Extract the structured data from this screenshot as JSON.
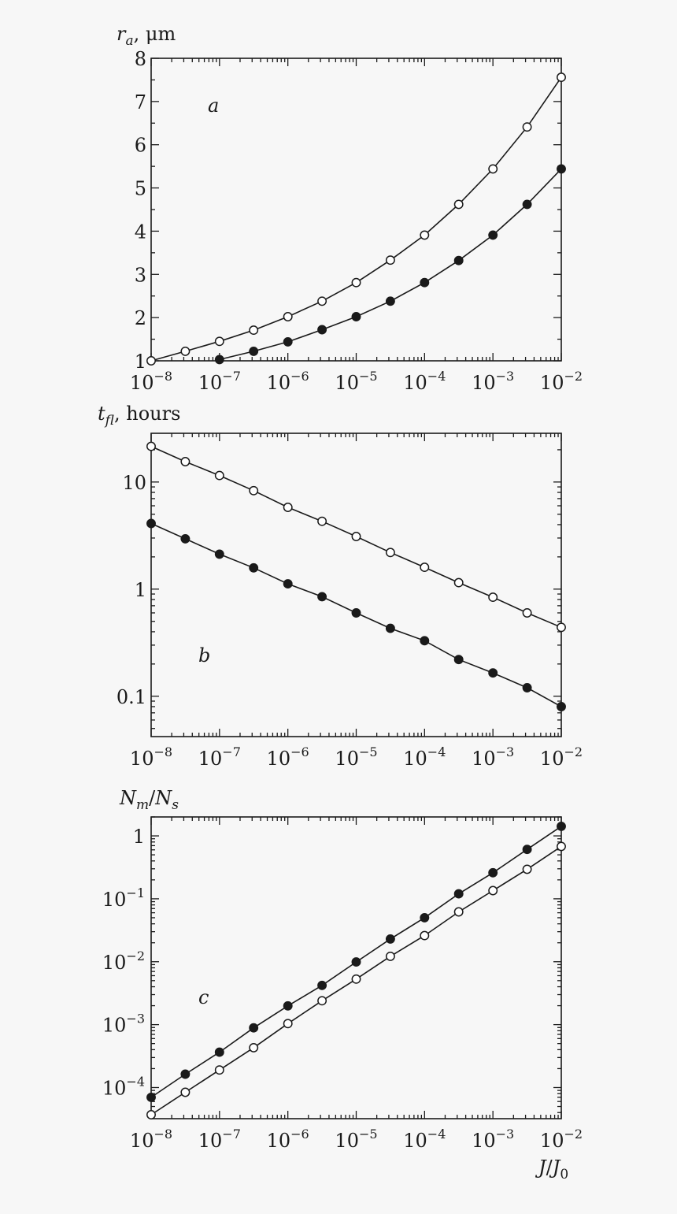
{
  "chart_data": [
    {
      "panel": "a",
      "type": "line",
      "ylabel_main": "r",
      "ylabel_sub": "a",
      "ylabel_unit": ", μm",
      "xlabel": "",
      "xscale": "log",
      "yscale": "linear",
      "xlim": [
        1e-08,
        0.01
      ],
      "ylim": [
        1,
        8
      ],
      "x_tick_labels": [
        {
          "base": "10",
          "exp": "−8"
        },
        {
          "base": "10",
          "exp": "−7"
        },
        {
          "base": "10",
          "exp": "−6"
        },
        {
          "base": "10",
          "exp": "−5"
        },
        {
          "base": "10",
          "exp": "−4"
        },
        {
          "base": "10",
          "exp": "−3"
        },
        {
          "base": "10",
          "exp": "−2"
        }
      ],
      "y_ticks": [
        1,
        2,
        3,
        4,
        5,
        6,
        7,
        8
      ],
      "y_tick_labels": [
        "1",
        "2",
        "3",
        "4",
        "5",
        "6",
        "7",
        "8"
      ],
      "grid": false,
      "series": [
        {
          "marker": "open",
          "x": [
            1e-08,
            3.16e-08,
            1e-07,
            3.16e-07,
            1e-06,
            3.16e-06,
            1e-05,
            3.16e-05,
            0.0001,
            0.000316,
            0.001,
            0.00316,
            0.01
          ],
          "y": [
            1.0,
            1.22,
            1.45,
            1.71,
            2.02,
            2.38,
            2.81,
            3.33,
            3.91,
            4.62,
            5.44,
            6.41,
            7.56
          ]
        },
        {
          "marker": "filled",
          "x": [
            1e-07,
            3.16e-07,
            1e-06,
            3.16e-06,
            1e-05,
            3.16e-05,
            0.0001,
            0.000316,
            0.001,
            0.00316,
            0.01
          ],
          "y": [
            1.03,
            1.22,
            1.44,
            1.72,
            2.02,
            2.38,
            2.81,
            3.32,
            3.91,
            4.62,
            5.44
          ]
        }
      ],
      "annotation": "a"
    },
    {
      "panel": "b",
      "type": "line",
      "ylabel_main": "t",
      "ylabel_sub": "fl",
      "ylabel_unit": ", hours",
      "xlabel": "",
      "xscale": "log",
      "yscale": "log",
      "xlim": [
        1e-08,
        0.01
      ],
      "ylim": [
        0.042,
        28.5
      ],
      "x_tick_labels": [
        {
          "base": "10",
          "exp": "−8"
        },
        {
          "base": "10",
          "exp": "−7"
        },
        {
          "base": "10",
          "exp": "−6"
        },
        {
          "base": "10",
          "exp": "−5"
        },
        {
          "base": "10",
          "exp": "−4"
        },
        {
          "base": "10",
          "exp": "−3"
        },
        {
          "base": "10",
          "exp": "−2"
        }
      ],
      "y_ticks": [
        0.1,
        1,
        10
      ],
      "y_tick_labels": [
        "0.1",
        "1",
        "10"
      ],
      "grid": false,
      "series": [
        {
          "marker": "open",
          "x": [
            1e-08,
            3.16e-08,
            1e-07,
            3.16e-07,
            1e-06,
            3.16e-06,
            1e-05,
            3.16e-05,
            0.0001,
            0.000316,
            0.001,
            0.00316,
            0.01
          ],
          "y": [
            21.5,
            15.5,
            11.5,
            8.3,
            5.8,
            4.3,
            3.1,
            2.2,
            1.6,
            1.15,
            0.84,
            0.6,
            0.44
          ]
        },
        {
          "marker": "filled",
          "x": [
            1e-08,
            3.16e-08,
            1e-07,
            3.16e-07,
            1e-06,
            3.16e-06,
            1e-05,
            3.16e-05,
            0.0001,
            0.000316,
            0.001,
            0.00316,
            0.01
          ],
          "y": [
            4.1,
            2.95,
            2.12,
            1.58,
            1.12,
            0.85,
            0.6,
            0.43,
            0.33,
            0.22,
            0.165,
            0.12,
            0.08
          ]
        }
      ],
      "annotation": "b"
    },
    {
      "panel": "c",
      "type": "line",
      "ylabel_main": "N",
      "ylabel_sub": "m",
      "ylabel_slash": "/",
      "ylabel_main2": "N",
      "ylabel_sub2": "s",
      "xlabel_main": "J",
      "xlabel_slash": "/",
      "xlabel_main2": "J",
      "xlabel_sub2": "0",
      "xscale": "log",
      "yscale": "log",
      "xlim": [
        1e-08,
        0.01
      ],
      "ylim": [
        3.2e-05,
        2.0
      ],
      "x_tick_labels": [
        {
          "base": "10",
          "exp": "−8"
        },
        {
          "base": "10",
          "exp": "−7"
        },
        {
          "base": "10",
          "exp": "−6"
        },
        {
          "base": "10",
          "exp": "−5"
        },
        {
          "base": "10",
          "exp": "−4"
        },
        {
          "base": "10",
          "exp": "−3"
        },
        {
          "base": "10",
          "exp": "−2"
        }
      ],
      "y_ticks": [
        0.0001,
        0.001,
        0.01,
        0.1,
        1
      ],
      "y_tick_labels": [
        {
          "base": "10",
          "exp": "−4"
        },
        {
          "base": "10",
          "exp": "−3"
        },
        {
          "base": "10",
          "exp": "−2"
        },
        {
          "base": "10",
          "exp": "−1"
        },
        {
          "base": "1",
          "exp": ""
        }
      ],
      "grid": false,
      "series": [
        {
          "marker": "filled",
          "x": [
            1e-08,
            3.16e-08,
            1e-07,
            3.16e-07,
            1e-06,
            3.16e-06,
            1e-05,
            3.16e-05,
            0.0001,
            0.000316,
            0.001,
            0.00316,
            0.01
          ],
          "y": [
            7e-05,
            0.000163,
            0.000365,
            0.00089,
            0.00199,
            0.0042,
            0.0099,
            0.023,
            0.05,
            0.12,
            0.26,
            0.61,
            1.42
          ]
        },
        {
          "marker": "open",
          "x": [
            1e-08,
            3.16e-08,
            1e-07,
            3.16e-07,
            1e-06,
            3.16e-06,
            1e-05,
            3.16e-05,
            0.0001,
            0.000316,
            0.001,
            0.00316,
            0.01
          ],
          "y": [
            3.7e-05,
            8.4e-05,
            0.00019,
            0.00043,
            0.00104,
            0.0024,
            0.0053,
            0.0122,
            0.026,
            0.062,
            0.135,
            0.295,
            0.68
          ]
        }
      ],
      "annotation": "c"
    }
  ]
}
